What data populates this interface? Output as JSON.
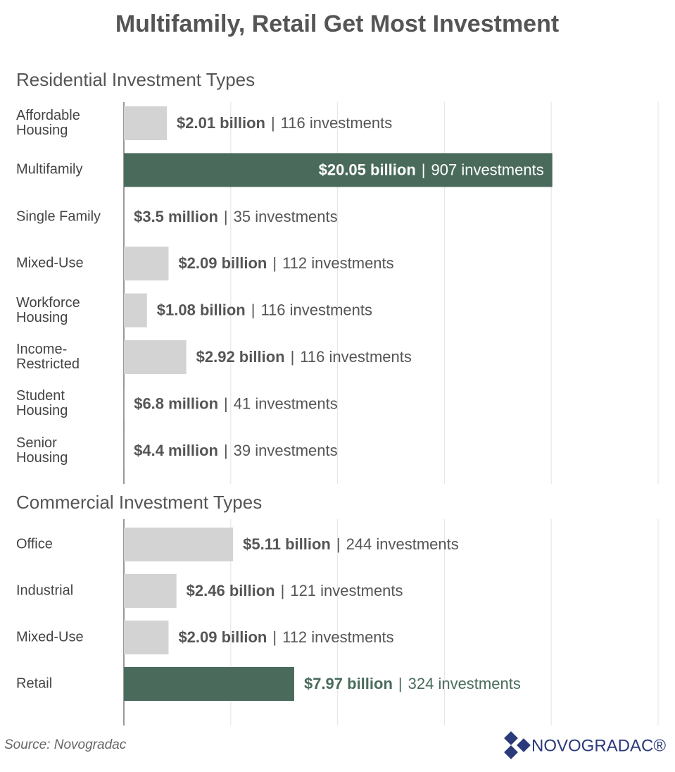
{
  "title": "Multifamily, Retail Get Most Investment",
  "chart_data": [
    {
      "type": "bar",
      "orientation": "horizontal",
      "title": "Residential Investment Types",
      "categories": [
        "Affordable\nHousing",
        "Multifamily",
        "Single Family",
        "Mixed-Use",
        "Workforce\nHousing",
        "Income-\nRestricted",
        "Student\nHousing",
        "Senior\nHousing"
      ],
      "values": [
        2.01,
        20.05,
        0.0035,
        2.09,
        1.08,
        2.92,
        0.0068,
        0.0044
      ],
      "value_labels": [
        "$2.01 billion",
        "$20.05 billion",
        "$3.5 million",
        "$2.09 billion",
        "$1.08 billion",
        "$2.92 billion",
        "$6.8 million",
        "$4.4 million"
      ],
      "count_labels": [
        "116 investments",
        "907 investments",
        "35 investments",
        "112 investments",
        "116 investments",
        "116 investments",
        "41 investments",
        "39 investments"
      ],
      "separator": "|",
      "colors": [
        "#d3d3d3",
        "#4a6b5c",
        "#d3d3d3",
        "#d3d3d3",
        "#d3d3d3",
        "#d3d3d3",
        "#d3d3d3",
        "#d3d3d3"
      ],
      "xlim": [
        0,
        25
      ],
      "xticks": [
        0,
        5,
        10,
        15,
        20,
        25
      ],
      "grid": true
    },
    {
      "type": "bar",
      "orientation": "horizontal",
      "title": "Commercial Investment Types",
      "categories": [
        "Office",
        "Industrial",
        "Mixed-Use",
        "Retail"
      ],
      "values": [
        5.11,
        2.46,
        2.09,
        7.97
      ],
      "value_labels": [
        "$5.11 billion",
        "$2.46 billion",
        "$2.09 billion",
        "$7.97 billion"
      ],
      "count_labels": [
        "244 investments",
        "121 investments",
        "112 investments",
        "324 investments"
      ],
      "separator": "|",
      "colors": [
        "#d3d3d3",
        "#d3d3d3",
        "#d3d3d3",
        "#4a6b5c"
      ],
      "xlim": [
        0,
        25
      ],
      "xticks": [
        0,
        5,
        10,
        15,
        20,
        25
      ],
      "grid": true
    }
  ],
  "footer": {
    "source": "Source: Novogradac",
    "logo": "NOVOGRADAC®"
  }
}
